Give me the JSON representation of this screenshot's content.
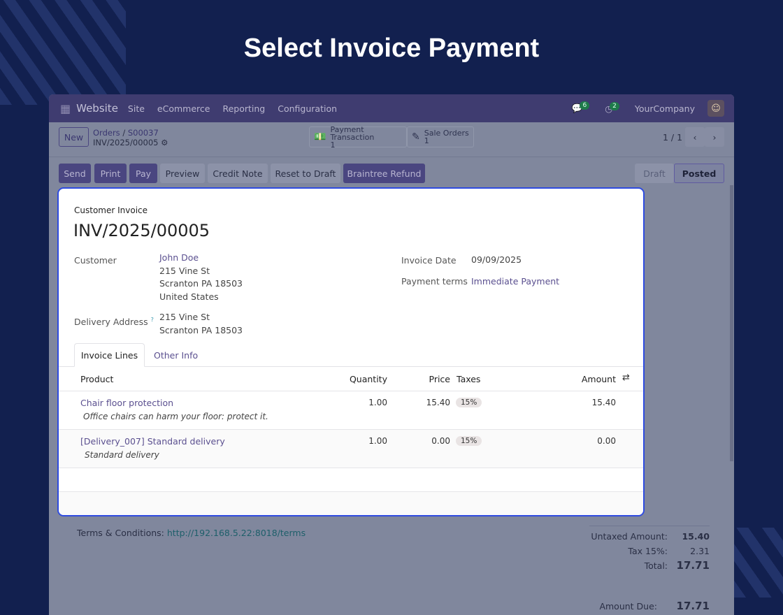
{
  "heading": "Select Invoice Payment",
  "navbar": {
    "app": "Website",
    "menus": [
      "Site",
      "eCommerce",
      "Reporting",
      "Configuration"
    ],
    "messages_count": "6",
    "activities_count": "2",
    "company": "YourCompany"
  },
  "control": {
    "new": "New",
    "breadcrumb_parent": "Orders",
    "breadcrumb_order": "S00037",
    "record": "INV/2025/00005",
    "smart_buttons": [
      {
        "label": "Payment Transaction",
        "count": "1"
      },
      {
        "label": "Sale Orders",
        "count": "1"
      }
    ],
    "pager": "1 / 1"
  },
  "actions": [
    "Send",
    "Print",
    "Pay",
    "Preview",
    "Credit Note",
    "Reset to Draft",
    "Braintree Refund"
  ],
  "status": {
    "steps": [
      "Draft",
      "Posted"
    ],
    "current": "Posted"
  },
  "invoice": {
    "type": "Customer Invoice",
    "number": "INV/2025/00005",
    "customer_label": "Customer",
    "customer": "John Doe",
    "customer_address": [
      "215 Vine St",
      "Scranton PA 18503",
      "United States"
    ],
    "delivery_label": "Delivery Address",
    "delivery_help": "?",
    "delivery_address": [
      "215 Vine St",
      "Scranton PA 18503"
    ],
    "date_label": "Invoice Date",
    "date": "09/09/2025",
    "terms_label": "Payment terms",
    "terms": "Immediate Payment",
    "tabs": [
      "Invoice Lines",
      "Other Info"
    ],
    "columns": [
      "Product",
      "Quantity",
      "Price",
      "Taxes",
      "Amount"
    ],
    "lines": [
      {
        "product": "Chair floor protection",
        "description": "Office chairs can harm your floor: protect it.",
        "quantity": "1.00",
        "price": "15.40",
        "tax": "15%",
        "amount": "15.40"
      },
      {
        "product": "[Delivery_007] Standard delivery",
        "description": "Standard delivery",
        "quantity": "1.00",
        "price": "0.00",
        "tax": "15%",
        "amount": "0.00"
      }
    ]
  },
  "footer": {
    "terms_label": "Terms & Conditions:",
    "terms_link": "http://192.168.5.22:8018/terms",
    "untaxed_label": "Untaxed Amount:",
    "untaxed": "15.40",
    "tax_label": "Tax 15%:",
    "tax": "2.31",
    "total_label": "Total:",
    "total": "17.71",
    "due_label": "Amount Due:",
    "due": "17.71"
  }
}
